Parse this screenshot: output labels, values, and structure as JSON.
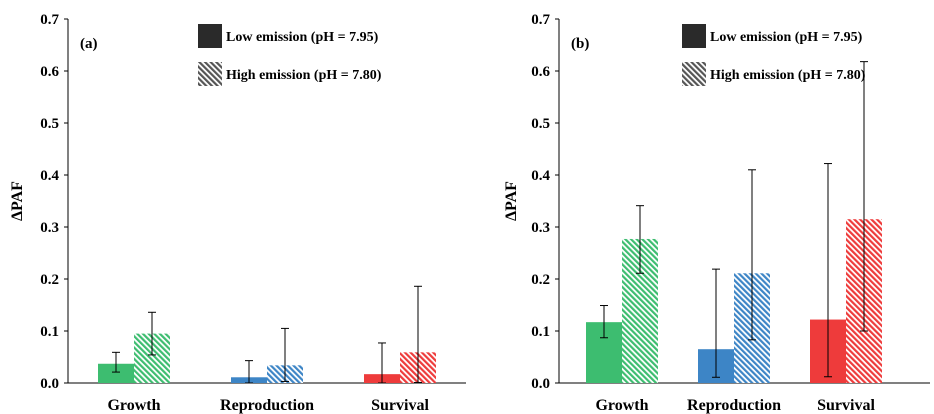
{
  "chart_data": [
    {
      "type": "bar",
      "panel_label": "(a)",
      "categories": [
        "Growth",
        "Reproduction",
        "Survival"
      ],
      "ylabel": "ΔPAF",
      "ylim": [
        0,
        0.7
      ],
      "yticks": [
        "0.0",
        "0.1",
        "0.2",
        "0.3",
        "0.4",
        "0.5",
        "0.6",
        "0.7"
      ],
      "legend_position": "top-right",
      "grid": false,
      "series": [
        {
          "name": "Low emission (pH = 7.95)",
          "pattern": "solid",
          "values": [
            0.037,
            0.011,
            0.017
          ],
          "error_low": [
            0.021,
            0.0,
            0.0
          ],
          "error_high": [
            0.059,
            0.043,
            0.077
          ]
        },
        {
          "name": "High emission (pH = 7.80)",
          "pattern": "hatched",
          "values": [
            0.095,
            0.034,
            0.059
          ],
          "error_low": [
            0.054,
            0.003,
            0.001
          ],
          "error_high": [
            0.136,
            0.105,
            0.186
          ]
        }
      ]
    },
    {
      "type": "bar",
      "panel_label": "(b)",
      "categories": [
        "Growth",
        "Reproduction",
        "Survival"
      ],
      "ylabel": "ΔPAF",
      "ylim": [
        0,
        0.7
      ],
      "yticks": [
        "0.0",
        "0.1",
        "0.2",
        "0.3",
        "0.4",
        "0.5",
        "0.6",
        "0.7"
      ],
      "legend_position": "top-right",
      "grid": false,
      "series": [
        {
          "name": "Low emission (pH = 7.95)",
          "pattern": "solid",
          "values": [
            0.117,
            0.065,
            0.122
          ],
          "error_low": [
            0.087,
            0.011,
            0.012
          ],
          "error_high": [
            0.149,
            0.219,
            0.422
          ]
        },
        {
          "name": "High emission (pH = 7.80)",
          "pattern": "hatched",
          "values": [
            0.277,
            0.211,
            0.315
          ],
          "error_low": [
            0.211,
            0.083,
            0.1
          ],
          "error_high": [
            0.341,
            0.41,
            0.618
          ]
        }
      ]
    }
  ],
  "colors": {
    "category_colors": [
      "#3dbd70",
      "#3d85c6",
      "#ee3b3b"
    ],
    "legend_dark": "#2a2a2a",
    "legend_light": "#555555",
    "axis": "#000000",
    "error_bar": "#000000"
  }
}
